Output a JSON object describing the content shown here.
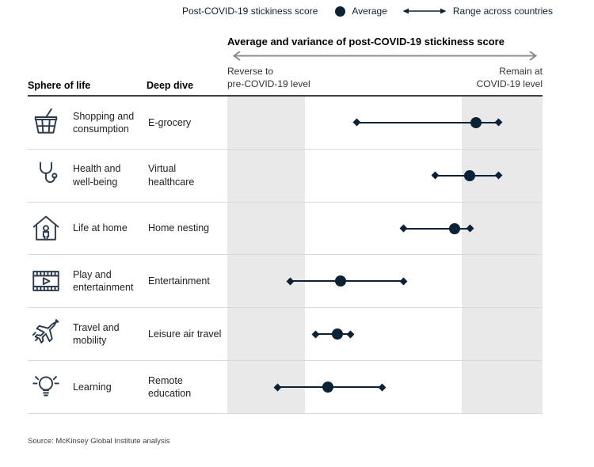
{
  "legend": {
    "score_label": "Post-COVID-19 stickiness score",
    "average_label": "Average",
    "range_label": "Range across countries"
  },
  "header": {
    "title": "Average and variance of post-COVID-19 stickiness score",
    "axis_left": "Reverse to\npre-COVID-19 level",
    "axis_right": "Remain at\nCOVID-19 level"
  },
  "columns": {
    "sphere": "Sphere of life",
    "deep_dive": "Deep dive"
  },
  "table": {
    "rows": [
      {
        "icon": "basket-icon",
        "sphere": "Shopping and consumption",
        "deep_dive": "E-grocery"
      },
      {
        "icon": "stethoscope-icon",
        "sphere": "Health and well-being",
        "deep_dive": "Virtual healthcare"
      },
      {
        "icon": "home-person-icon",
        "sphere": "Life at home",
        "deep_dive": "Home nesting"
      },
      {
        "icon": "film-icon",
        "sphere": "Play and entertainment",
        "deep_dive": "Entertainment"
      },
      {
        "icon": "airplane-icon",
        "sphere": "Travel and mobility",
        "deep_dive": "Leisure air travel"
      },
      {
        "icon": "lightbulb-icon",
        "sphere": "Learning",
        "deep_dive": "Remote education"
      }
    ]
  },
  "chart_data": {
    "type": "scatter",
    "subtype": "dot-plot-with-range",
    "title": "Average and variance of post-COVID-19 stickiness score",
    "axis": {
      "range": [
        0,
        1
      ],
      "min_label": "Reverse to pre-COVID-19 level",
      "max_label": "Remain at COVID-19 level",
      "ticks_visible": false
    },
    "shaded_bands": [
      {
        "from": 0.0,
        "to": 0.246
      },
      {
        "from": 0.744,
        "to": 1.0
      }
    ],
    "legend_position": "top",
    "series": [
      {
        "name": "E-grocery",
        "min": 0.41,
        "avg": 0.79,
        "max": 0.86
      },
      {
        "name": "Virtual healthcare",
        "min": 0.66,
        "avg": 0.77,
        "max": 0.86
      },
      {
        "name": "Home nesting",
        "min": 0.56,
        "avg": 0.72,
        "max": 0.77
      },
      {
        "name": "Entertainment",
        "min": 0.2,
        "avg": 0.36,
        "max": 0.56
      },
      {
        "name": "Leisure air travel",
        "min": 0.28,
        "avg": 0.35,
        "max": 0.39
      },
      {
        "name": "Remote education",
        "min": 0.16,
        "avg": 0.32,
        "max": 0.49
      }
    ]
  },
  "source": "Source: McKinsey Global Institute analysis",
  "colors": {
    "accent": "#0b2135",
    "band": "#e9e9e9",
    "divider": "#d9d9d9",
    "header_line": "#404040",
    "axis_arrow": "#8c8c8c",
    "icon_stroke": "#2d3c4d"
  }
}
